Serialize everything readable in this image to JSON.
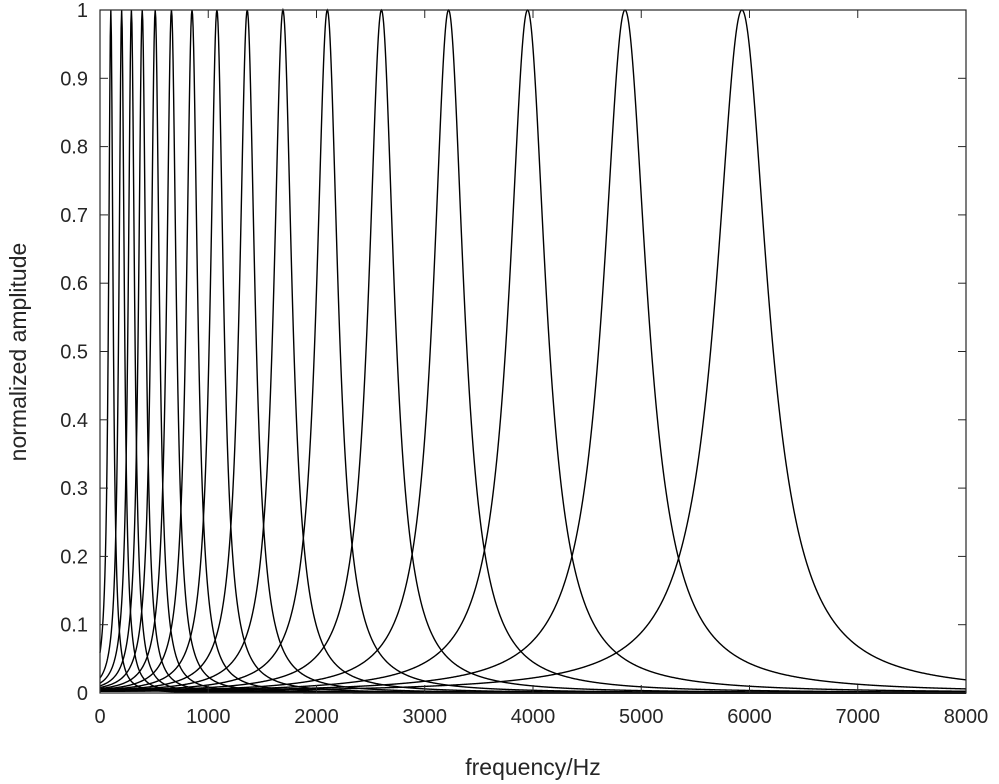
{
  "chart_data": {
    "type": "line",
    "title": "",
    "xlabel": "frequency/Hz",
    "ylabel": "normalized amplitude",
    "xlim": [
      0,
      8000
    ],
    "ylim": [
      0,
      1
    ],
    "x_ticks": [
      0,
      1000,
      2000,
      3000,
      4000,
      5000,
      6000,
      7000,
      8000
    ],
    "y_ticks": [
      0,
      0.1,
      0.2,
      0.3,
      0.4,
      0.5,
      0.6,
      0.7,
      0.8,
      0.9,
      1
    ],
    "x_tick_labels": [
      "0",
      "1000",
      "2000",
      "3000",
      "4000",
      "5000",
      "6000",
      "7000",
      "8000"
    ],
    "y_tick_labels": [
      "0",
      "0.1",
      "0.2",
      "0.3",
      "0.4",
      "0.5",
      "0.6",
      "0.7",
      "0.8",
      "0.9",
      "1"
    ],
    "grid": false,
    "legend": "none",
    "line_color": "#000000",
    "curve_shape": "resonance peaks, normalized to 1",
    "series": [
      {
        "center_hz": 100,
        "half_width_hz": 25
      },
      {
        "center_hz": 200,
        "half_width_hz": 30
      },
      {
        "center_hz": 290,
        "half_width_hz": 35
      },
      {
        "center_hz": 390,
        "half_width_hz": 40
      },
      {
        "center_hz": 510,
        "half_width_hz": 46
      },
      {
        "center_hz": 660,
        "half_width_hz": 53
      },
      {
        "center_hz": 850,
        "half_width_hz": 62
      },
      {
        "center_hz": 1080,
        "half_width_hz": 73
      },
      {
        "center_hz": 1360,
        "half_width_hz": 86
      },
      {
        "center_hz": 1690,
        "half_width_hz": 102
      },
      {
        "center_hz": 2100,
        "half_width_hz": 120
      },
      {
        "center_hz": 2600,
        "half_width_hz": 143
      },
      {
        "center_hz": 3220,
        "half_width_hz": 170
      },
      {
        "center_hz": 3950,
        "half_width_hz": 205
      },
      {
        "center_hz": 4850,
        "half_width_hz": 245
      },
      {
        "center_hz": 5930,
        "half_width_hz": 290
      }
    ]
  }
}
